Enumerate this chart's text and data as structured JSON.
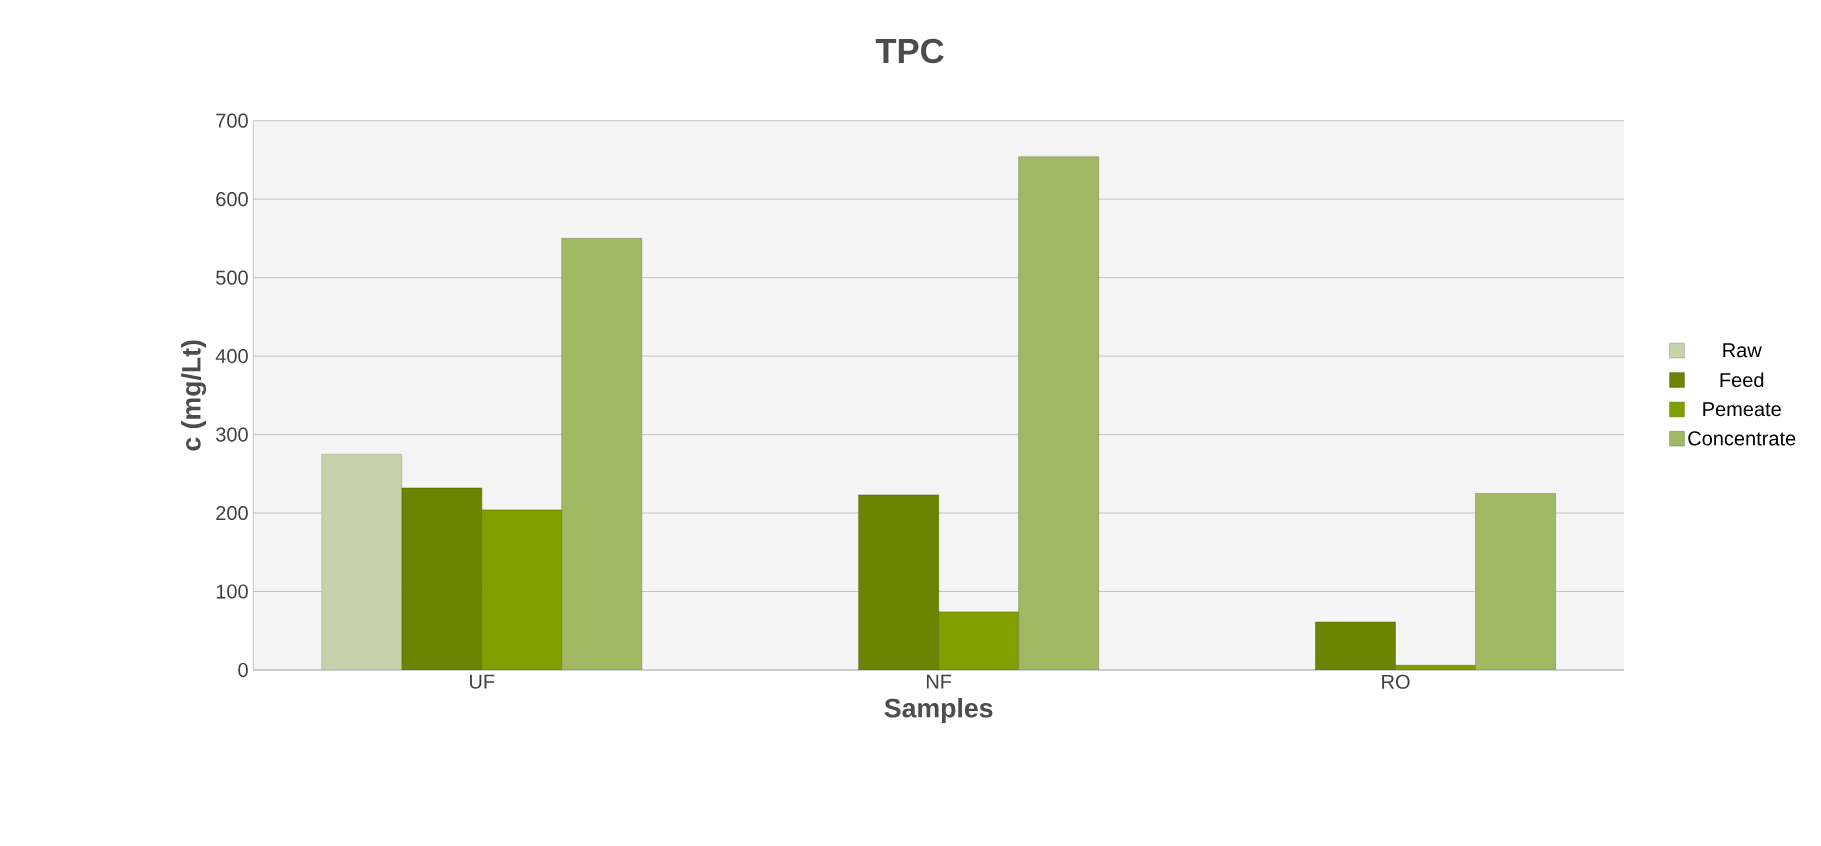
{
  "chart_data": {
    "type": "bar",
    "title": "TPC",
    "xlabel": "Samples",
    "ylabel": "c (mg/Lt)",
    "categories": [
      "UF",
      "NF",
      "RO"
    ],
    "series": [
      {
        "name": "Raw",
        "color": "#c6d4ad",
        "values": [
          275,
          null,
          null
        ]
      },
      {
        "name": "Feed",
        "color": "#6b8500",
        "values": [
          232,
          223,
          61
        ]
      },
      {
        "name": "Pemeate",
        "color": "#80a000",
        "values": [
          204,
          74,
          6
        ]
      },
      {
        "name": "Concentrate",
        "color": "#a2b964",
        "values": [
          550,
          654,
          225
        ]
      }
    ],
    "ylim": [
      0,
      700
    ],
    "yticks": [
      0,
      100,
      200,
      300,
      400,
      500,
      600,
      700
    ],
    "grid": "y",
    "legend": "right"
  }
}
